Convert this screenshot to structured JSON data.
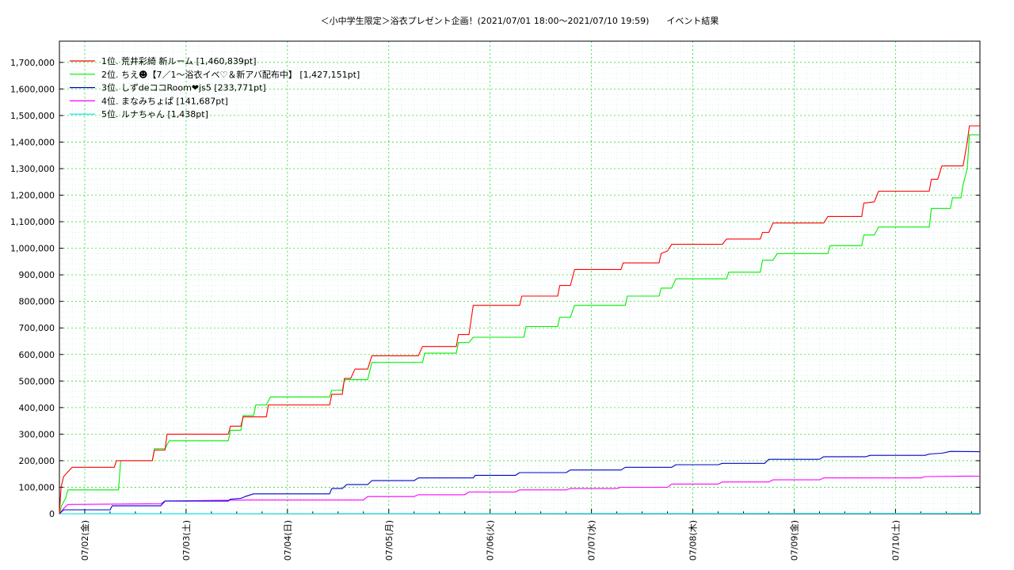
{
  "chart_data": {
    "type": "line",
    "title": "＜小中学生限定＞浴衣プレゼント企画！(2021/07/01 18:00～2021/07/10 19:59)　　イベント結果",
    "ylim": [
      0,
      1780000
    ],
    "yticks": [
      0,
      100000,
      200000,
      300000,
      400000,
      500000,
      600000,
      700000,
      800000,
      900000,
      1000000,
      1100000,
      1200000,
      1300000,
      1400000,
      1500000,
      1600000,
      1700000
    ],
    "ytick_labels": [
      "0",
      "100,000",
      "200,000",
      "300,000",
      "400,000",
      "500,000",
      "600,000",
      "700,000",
      "800,000",
      "900,000",
      "1,000,000",
      "1,100,000",
      "1,200,000",
      "1,300,000",
      "1,400,000",
      "1,500,000",
      "1,600,000",
      "1,700,000"
    ],
    "xlim": [
      0,
      218
    ],
    "xticks": [
      6,
      30,
      54,
      78,
      102,
      126,
      150,
      174,
      198
    ],
    "xtick_labels": [
      "07/02(金)",
      "07/03(土)",
      "07/04(日)",
      "07/05(月)",
      "07/06(火)",
      "07/07(水)",
      "07/08(木)",
      "07/09(金)",
      "07/10(土)"
    ],
    "x_unit": "hours since 2021/07/01 18:00",
    "grid": true,
    "legend_position": "top-left",
    "series": [
      {
        "name": "1位. 荒井彩綺 新ルーム [1,460,839pt]",
        "color": "#ff0000",
        "points": [
          [
            0,
            0
          ],
          [
            0.4,
            100000
          ],
          [
            1,
            140000
          ],
          [
            3,
            175000
          ],
          [
            13,
            175000
          ],
          [
            13.5,
            200000
          ],
          [
            22,
            200000
          ],
          [
            22.5,
            240000
          ],
          [
            25,
            240000
          ],
          [
            25.5,
            300000
          ],
          [
            40,
            300000
          ],
          [
            40.5,
            330000
          ],
          [
            43,
            330000
          ],
          [
            43.5,
            365000
          ],
          [
            49,
            365000
          ],
          [
            49.5,
            410000
          ],
          [
            64,
            410000
          ],
          [
            64.5,
            450000
          ],
          [
            67,
            450000
          ],
          [
            67.5,
            510000
          ],
          [
            69,
            510000
          ],
          [
            70,
            545000
          ],
          [
            73,
            545000
          ],
          [
            74,
            595000
          ],
          [
            85,
            595000
          ],
          [
            86,
            630000
          ],
          [
            94,
            630000
          ],
          [
            94.5,
            675000
          ],
          [
            97,
            675000
          ],
          [
            98,
            785000
          ],
          [
            109,
            785000
          ],
          [
            109.5,
            820000
          ],
          [
            118,
            820000
          ],
          [
            118.5,
            860000
          ],
          [
            121,
            860000
          ],
          [
            122,
            920000
          ],
          [
            133,
            920000
          ],
          [
            133.5,
            945000
          ],
          [
            142,
            945000
          ],
          [
            142.5,
            980000
          ],
          [
            144,
            990000
          ],
          [
            145,
            1015000
          ],
          [
            157,
            1015000
          ],
          [
            158,
            1035000
          ],
          [
            166,
            1035000
          ],
          [
            166.5,
            1060000
          ],
          [
            168,
            1060000
          ],
          [
            169,
            1095000
          ],
          [
            181,
            1095000
          ],
          [
            182,
            1120000
          ],
          [
            190,
            1120000
          ],
          [
            190.5,
            1170000
          ],
          [
            193,
            1175000
          ],
          [
            194,
            1215000
          ],
          [
            206,
            1215000
          ],
          [
            206.5,
            1260000
          ],
          [
            208,
            1260000
          ],
          [
            209,
            1310000
          ],
          [
            214,
            1310000
          ],
          [
            215,
            1400000
          ],
          [
            215.5,
            1460839
          ],
          [
            218,
            1460839
          ]
        ]
      },
      {
        "name": "2位. ちえ☻【7／1〜浴衣イベ♡＆新アバ配布中】 [1,427,151pt]",
        "color": "#00ee00",
        "points": [
          [
            0,
            0
          ],
          [
            0.5,
            30000
          ],
          [
            1.5,
            60000
          ],
          [
            2,
            90000
          ],
          [
            14,
            90000
          ],
          [
            14.5,
            200000
          ],
          [
            22,
            200000
          ],
          [
            22.5,
            245000
          ],
          [
            25,
            245000
          ],
          [
            26,
            275000
          ],
          [
            40,
            275000
          ],
          [
            40.5,
            315000
          ],
          [
            43,
            315000
          ],
          [
            43.5,
            370000
          ],
          [
            46,
            370000
          ],
          [
            46.5,
            410000
          ],
          [
            49,
            410000
          ],
          [
            50,
            440000
          ],
          [
            64,
            440000
          ],
          [
            64.5,
            465000
          ],
          [
            67,
            465000
          ],
          [
            67.5,
            505000
          ],
          [
            73,
            505000
          ],
          [
            74,
            570000
          ],
          [
            86,
            570000
          ],
          [
            86.5,
            605000
          ],
          [
            94,
            605000
          ],
          [
            94.5,
            645000
          ],
          [
            97,
            645000
          ],
          [
            98,
            665000
          ],
          [
            110,
            665000
          ],
          [
            110.5,
            705000
          ],
          [
            118,
            705000
          ],
          [
            118.5,
            740000
          ],
          [
            121,
            740000
          ],
          [
            122,
            785000
          ],
          [
            134,
            785000
          ],
          [
            134.5,
            820000
          ],
          [
            142,
            820000
          ],
          [
            142.5,
            850000
          ],
          [
            145,
            850000
          ],
          [
            146,
            885000
          ],
          [
            158,
            885000
          ],
          [
            158.5,
            910000
          ],
          [
            166,
            910000
          ],
          [
            166.5,
            955000
          ],
          [
            169,
            955000
          ],
          [
            170,
            980000
          ],
          [
            182,
            980000
          ],
          [
            182.5,
            1010000
          ],
          [
            190,
            1010000
          ],
          [
            190.5,
            1050000
          ],
          [
            193,
            1050000
          ],
          [
            194,
            1080000
          ],
          [
            206,
            1080000
          ],
          [
            206.5,
            1150000
          ],
          [
            211,
            1150000
          ],
          [
            211.5,
            1190000
          ],
          [
            213.5,
            1190000
          ],
          [
            214,
            1240000
          ],
          [
            215,
            1300000
          ],
          [
            215.5,
            1427151
          ],
          [
            218,
            1427151
          ]
        ]
      },
      {
        "name": "3位. しずdeココRoom❤js5 [233,771pt]",
        "color": "#0000cc",
        "points": [
          [
            0,
            0
          ],
          [
            1,
            15000
          ],
          [
            12,
            15000
          ],
          [
            12.5,
            30000
          ],
          [
            24,
            30000
          ],
          [
            25,
            48000
          ],
          [
            40,
            48000
          ],
          [
            40.5,
            55000
          ],
          [
            43,
            58000
          ],
          [
            44,
            65000
          ],
          [
            46,
            75000
          ],
          [
            64,
            75000
          ],
          [
            64.5,
            95000
          ],
          [
            67,
            95000
          ],
          [
            68,
            110000
          ],
          [
            73,
            110000
          ],
          [
            74,
            125000
          ],
          [
            84,
            125000
          ],
          [
            85,
            135000
          ],
          [
            98,
            135000
          ],
          [
            98.5,
            145000
          ],
          [
            108,
            145000
          ],
          [
            109,
            155000
          ],
          [
            120,
            155000
          ],
          [
            121,
            165000
          ],
          [
            133,
            165000
          ],
          [
            134,
            175000
          ],
          [
            145,
            175000
          ],
          [
            146,
            185000
          ],
          [
            156,
            185000
          ],
          [
            157,
            190000
          ],
          [
            167,
            190000
          ],
          [
            168,
            205000
          ],
          [
            180,
            205000
          ],
          [
            181,
            215000
          ],
          [
            191,
            215000
          ],
          [
            192,
            220000
          ],
          [
            205,
            220000
          ],
          [
            206,
            225000
          ],
          [
            209,
            228000
          ],
          [
            211,
            235000
          ],
          [
            218,
            233771
          ]
        ]
      },
      {
        "name": "4位. まなみちょぱ [141,687pt]",
        "color": "#ff00ff",
        "points": [
          [
            0,
            0
          ],
          [
            1,
            20000
          ],
          [
            2,
            35000
          ],
          [
            24,
            38000
          ],
          [
            25,
            48000
          ],
          [
            45,
            52000
          ],
          [
            72,
            52000
          ],
          [
            73,
            65000
          ],
          [
            84,
            65000
          ],
          [
            85,
            72000
          ],
          [
            96,
            72000
          ],
          [
            97,
            82000
          ],
          [
            108,
            82000
          ],
          [
            109,
            90000
          ],
          [
            120,
            90000
          ],
          [
            121,
            95000
          ],
          [
            132,
            95000
          ],
          [
            133,
            100000
          ],
          [
            144,
            100000
          ],
          [
            145,
            112000
          ],
          [
            156,
            112000
          ],
          [
            157,
            120000
          ],
          [
            168,
            120000
          ],
          [
            169,
            128000
          ],
          [
            180,
            128000
          ],
          [
            181,
            135000
          ],
          [
            204,
            135000
          ],
          [
            205,
            140000
          ],
          [
            215,
            142000
          ],
          [
            218,
            141687
          ]
        ]
      },
      {
        "name": "5位. ルナちゃん [1,438pt]",
        "color": "#00e0e0",
        "points": [
          [
            0,
            0
          ],
          [
            218,
            1438
          ]
        ]
      }
    ]
  }
}
